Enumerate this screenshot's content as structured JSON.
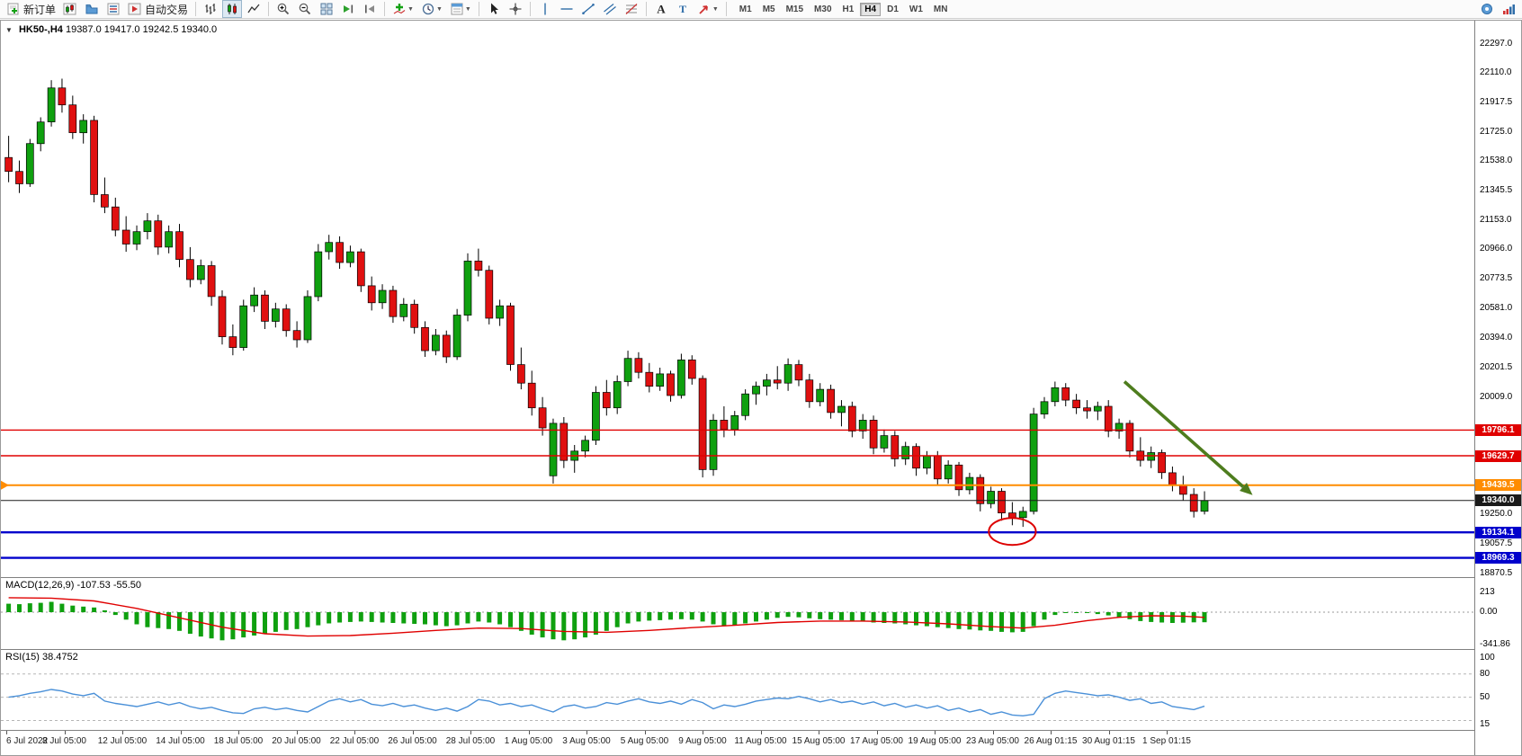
{
  "toolbar": {
    "new_order_label": "新订单",
    "auto_trading_label": "自动交易",
    "timeframes": [
      "M1",
      "M5",
      "M15",
      "M30",
      "H1",
      "H4",
      "D1",
      "W1",
      "MN"
    ],
    "active_timeframe": "H4"
  },
  "chart_header": {
    "expander": "▼",
    "title": "HK50-,H4",
    "ohlc": "19387.0 19417.0 19242.5 19340.0"
  },
  "chart_data": {
    "type": "candlestick",
    "symbol": "HK50-",
    "timeframe": "H4",
    "ohlc_display": {
      "open": 19387.0,
      "high": 19417.0,
      "low": 19242.5,
      "close": 19340.0
    },
    "colors": {
      "up": "#0fa00f",
      "down": "#e01010",
      "wick": "#000000",
      "macd_hist": "#0fa00f",
      "macd_signal": "#e00000",
      "rsi_line": "#4a90d8"
    },
    "price_axis": {
      "plain_ticks": [
        22297.0,
        22110.0,
        21917.5,
        21725.0,
        21538.0,
        21345.5,
        21153.0,
        20966.0,
        20773.5,
        20581.0,
        20394.0,
        20201.5,
        20009.0,
        19250.0,
        19057.5,
        18870.5
      ],
      "top_price": 22350,
      "bottom_price": 18845
    },
    "hlines": [
      {
        "price": 19796.1,
        "label": "19796.1",
        "color": "#e00000",
        "width": 1.4,
        "marker_left": false
      },
      {
        "price": 19629.7,
        "label": "19629.7",
        "color": "#e00000",
        "width": 1.4,
        "marker_left": false
      },
      {
        "price": 19439.5,
        "label": "19439.5",
        "color": "#ff8c00",
        "width": 2,
        "marker_left": true
      },
      {
        "price": 19340.0,
        "label": "19340.0",
        "color": "#1a1a1a",
        "width": 1,
        "marker_left": false
      },
      {
        "price": 19134.1,
        "label": "19134.1",
        "color": "#0000cc",
        "width": 2.4,
        "marker_left": false
      },
      {
        "price": 18969.3,
        "label": "18969.3",
        "color": "#0000cc",
        "width": 2.4,
        "marker_left": false
      }
    ],
    "candles": [
      [
        21560,
        21700,
        21400,
        21470
      ],
      [
        21470,
        21540,
        21330,
        21390
      ],
      [
        21390,
        21680,
        21370,
        21650
      ],
      [
        21650,
        21820,
        21600,
        21790
      ],
      [
        21790,
        22060,
        21760,
        22010
      ],
      [
        22010,
        22070,
        21850,
        21900
      ],
      [
        21900,
        21960,
        21680,
        21720
      ],
      [
        21720,
        21840,
        21650,
        21800
      ],
      [
        21800,
        21830,
        21270,
        21320
      ],
      [
        21320,
        21430,
        21200,
        21240
      ],
      [
        21240,
        21300,
        21050,
        21090
      ],
      [
        21090,
        21180,
        20950,
        21000
      ],
      [
        21000,
        21120,
        20960,
        21080
      ],
      [
        21080,
        21200,
        21030,
        21150
      ],
      [
        21150,
        21190,
        20930,
        20980
      ],
      [
        20980,
        21120,
        20940,
        21080
      ],
      [
        21080,
        21130,
        20850,
        20900
      ],
      [
        20900,
        20980,
        20720,
        20770
      ],
      [
        20770,
        20900,
        20740,
        20860
      ],
      [
        20860,
        20890,
        20600,
        20660
      ],
      [
        20660,
        20700,
        20350,
        20400
      ],
      [
        20400,
        20480,
        20280,
        20330
      ],
      [
        20330,
        20640,
        20310,
        20600
      ],
      [
        20600,
        20720,
        20560,
        20670
      ],
      [
        20670,
        20700,
        20450,
        20500
      ],
      [
        20500,
        20620,
        20460,
        20580
      ],
      [
        20580,
        20610,
        20400,
        20440
      ],
      [
        20440,
        20500,
        20330,
        20380
      ],
      [
        20380,
        20700,
        20360,
        20660
      ],
      [
        20660,
        21000,
        20630,
        20950
      ],
      [
        20950,
        21060,
        20900,
        21010
      ],
      [
        21010,
        21050,
        20840,
        20880
      ],
      [
        20880,
        20990,
        20850,
        20950
      ],
      [
        20950,
        20970,
        20690,
        20730
      ],
      [
        20730,
        20790,
        20570,
        20620
      ],
      [
        20620,
        20740,
        20580,
        20700
      ],
      [
        20700,
        20730,
        20490,
        20530
      ],
      [
        20530,
        20650,
        20500,
        20610
      ],
      [
        20610,
        20640,
        20420,
        20460
      ],
      [
        20460,
        20500,
        20270,
        20310
      ],
      [
        20310,
        20450,
        20280,
        20410
      ],
      [
        20410,
        20440,
        20230,
        20270
      ],
      [
        20270,
        20580,
        20250,
        20540
      ],
      [
        20540,
        20940,
        20500,
        20890
      ],
      [
        20890,
        20970,
        20790,
        20830
      ],
      [
        20830,
        20860,
        20480,
        20520
      ],
      [
        20520,
        20640,
        20470,
        20600
      ],
      [
        20600,
        20620,
        20180,
        20220
      ],
      [
        20220,
        20330,
        20060,
        20100
      ],
      [
        20100,
        20180,
        19890,
        19940
      ],
      [
        19940,
        20010,
        19760,
        19810
      ],
      [
        19500,
        19870,
        19450,
        19840
      ],
      [
        19840,
        19880,
        19550,
        19600
      ],
      [
        19600,
        19700,
        19520,
        19660
      ],
      [
        19660,
        19760,
        19620,
        19730
      ],
      [
        19730,
        20080,
        19700,
        20040
      ],
      [
        20040,
        20120,
        19890,
        19940
      ],
      [
        19940,
        20150,
        19900,
        20110
      ],
      [
        20110,
        20310,
        20080,
        20260
      ],
      [
        20260,
        20300,
        20130,
        20170
      ],
      [
        20170,
        20230,
        20040,
        20080
      ],
      [
        20080,
        20200,
        20050,
        20160
      ],
      [
        20160,
        20180,
        19980,
        20020
      ],
      [
        20020,
        20290,
        20000,
        20250
      ],
      [
        20250,
        20280,
        20090,
        20130
      ],
      [
        20130,
        20150,
        19490,
        19540
      ],
      [
        19540,
        19900,
        19500,
        19860
      ],
      [
        19860,
        19950,
        19750,
        19800
      ],
      [
        19800,
        19920,
        19760,
        19890
      ],
      [
        19890,
        20060,
        19860,
        20030
      ],
      [
        20030,
        20110,
        19960,
        20080
      ],
      [
        20080,
        20160,
        20020,
        20120
      ],
      [
        20120,
        20210,
        20060,
        20100
      ],
      [
        20100,
        20260,
        20050,
        20220
      ],
      [
        20220,
        20250,
        20080,
        20120
      ],
      [
        20120,
        20160,
        19940,
        19980
      ],
      [
        19980,
        20100,
        19950,
        20060
      ],
      [
        20060,
        20090,
        19870,
        19910
      ],
      [
        19910,
        19990,
        19820,
        19950
      ],
      [
        19950,
        19980,
        19750,
        19790
      ],
      [
        19790,
        19900,
        19740,
        19860
      ],
      [
        19860,
        19890,
        19640,
        19680
      ],
      [
        19680,
        19800,
        19650,
        19760
      ],
      [
        19760,
        19790,
        19560,
        19610
      ],
      [
        19610,
        19720,
        19570,
        19690
      ],
      [
        19690,
        19710,
        19500,
        19550
      ],
      [
        19550,
        19660,
        19510,
        19630
      ],
      [
        19630,
        19660,
        19440,
        19480
      ],
      [
        19480,
        19600,
        19450,
        19570
      ],
      [
        19570,
        19590,
        19370,
        19410
      ],
      [
        19410,
        19520,
        19380,
        19490
      ],
      [
        19490,
        19510,
        19270,
        19320
      ],
      [
        19320,
        19430,
        19290,
        19400
      ],
      [
        19400,
        19420,
        19210,
        19260
      ],
      [
        19260,
        19330,
        19180,
        19230
      ],
      [
        19230,
        19300,
        19170,
        19270
      ],
      [
        19270,
        19940,
        19250,
        19900
      ],
      [
        19900,
        20010,
        19870,
        19980
      ],
      [
        19980,
        20110,
        19950,
        20070
      ],
      [
        20070,
        20100,
        19950,
        19990
      ],
      [
        19990,
        20030,
        19900,
        19940
      ],
      [
        19940,
        19990,
        19870,
        19920
      ],
      [
        19920,
        19980,
        19860,
        19950
      ],
      [
        19950,
        19990,
        19750,
        19790
      ],
      [
        19790,
        19870,
        19740,
        19840
      ],
      [
        19840,
        19860,
        19620,
        19660
      ],
      [
        19660,
        19750,
        19560,
        19600
      ],
      [
        19600,
        19690,
        19550,
        19650
      ],
      [
        19650,
        19670,
        19480,
        19520
      ],
      [
        19520,
        19560,
        19400,
        19440
      ],
      [
        19440,
        19500,
        19340,
        19380
      ],
      [
        19380,
        19420,
        19230,
        19270
      ],
      [
        19270,
        19400,
        19250,
        19340
      ]
    ],
    "time_labels": [
      "6 Jul 2022",
      "8 Jul 05:00",
      "12 Jul 05:00",
      "14 Jul 05:00",
      "18 Jul 05:00",
      "20 Jul 05:00",
      "22 Jul 05:00",
      "26 Jul 05:00",
      "28 Jul 05:00",
      "1 Aug 05:00",
      "3 Aug 05:00",
      "5 Aug 05:00",
      "9 Aug 05:00",
      "11 Aug 05:00",
      "15 Aug 05:00",
      "17 Aug 05:00",
      "19 Aug 05:00",
      "23 Aug 05:00",
      "26 Aug 01:15",
      "30 Aug 01:15",
      "1 Sep 01:15"
    ],
    "annotations": {
      "ellipse": {
        "center_index": 94,
        "center_price": 19140,
        "half_width_candles": 2.2,
        "half_height_points": 87,
        "color": "#dd0000"
      },
      "arrow": {
        "from_index": 104.5,
        "from_price": 20110,
        "to_index": 116.5,
        "to_price": 19375,
        "color": "#4e7d1e"
      }
    },
    "macd": {
      "name": "MACD(12,26,9)",
      "values_text": "-107.53 -55.50",
      "axis_ticks": [
        {
          "label": "213",
          "value": 213
        },
        {
          "label": "0.00",
          "value": 0
        },
        {
          "label": "-341.86",
          "value": -341.86
        }
      ],
      "histogram": [
        90,
        85,
        95,
        100,
        110,
        90,
        70,
        60,
        50,
        20,
        -30,
        -80,
        -130,
        -160,
        -170,
        -180,
        -200,
        -230,
        -260,
        -280,
        -300,
        -290,
        -270,
        -250,
        -230,
        -210,
        -190,
        -180,
        -160,
        -140,
        -120,
        -110,
        -105,
        -100,
        -105,
        -110,
        -115,
        -120,
        -125,
        -130,
        -140,
        -150,
        -140,
        -120,
        -100,
        -110,
        -130,
        -160,
        -200,
        -240,
        -270,
        -290,
        -300,
        -290,
        -270,
        -240,
        -200,
        -160,
        -120,
        -100,
        -90,
        -85,
        -80,
        -75,
        -80,
        -100,
        -130,
        -150,
        -140,
        -120,
        -100,
        -80,
        -60,
        -50,
        -55,
        -65,
        -75,
        -80,
        -85,
        -95,
        -100,
        -110,
        -115,
        -120,
        -130,
        -140,
        -150,
        -160,
        -170,
        -180,
        -185,
        -195,
        -200,
        -210,
        -215,
        -210,
        -150,
        -80,
        -30,
        -10,
        -5,
        -10,
        -20,
        -35,
        -55,
        -75,
        -95,
        -105,
        -110,
        -115,
        -112,
        -108,
        -107.53
      ],
      "signal_keypoints": [
        [
          0,
          155
        ],
        [
          4,
          150
        ],
        [
          8,
          120
        ],
        [
          12,
          40
        ],
        [
          16,
          -60
        ],
        [
          20,
          -160
        ],
        [
          24,
          -230
        ],
        [
          28,
          -255
        ],
        [
          32,
          -250
        ],
        [
          36,
          -225
        ],
        [
          40,
          -195
        ],
        [
          44,
          -170
        ],
        [
          48,
          -175
        ],
        [
          52,
          -205
        ],
        [
          56,
          -215
        ],
        [
          60,
          -195
        ],
        [
          64,
          -165
        ],
        [
          68,
          -140
        ],
        [
          72,
          -110
        ],
        [
          76,
          -95
        ],
        [
          80,
          -95
        ],
        [
          84,
          -105
        ],
        [
          88,
          -125
        ],
        [
          92,
          -155
        ],
        [
          95,
          -170
        ],
        [
          98,
          -140
        ],
        [
          101,
          -90
        ],
        [
          104,
          -55
        ],
        [
          107,
          -38
        ],
        [
          110,
          -42
        ],
        [
          112,
          -55.5
        ]
      ]
    },
    "rsi": {
      "name": "RSI(15)",
      "value_text": "38.4752",
      "axis_ticks": [
        {
          "label": "100",
          "value": 100
        },
        {
          "label": "80",
          "value": 80
        },
        {
          "label": "50",
          "value": 50
        },
        {
          "label": "15",
          "value": 15
        }
      ],
      "levels_dashed": [
        80,
        50,
        20
      ],
      "values": [
        50,
        52,
        55,
        57,
        60,
        58,
        54,
        52,
        55,
        45,
        42,
        40,
        38,
        41,
        44,
        40,
        43,
        38,
        35,
        37,
        33,
        30,
        29,
        35,
        37,
        34,
        36,
        33,
        31,
        38,
        45,
        48,
        44,
        47,
        41,
        39,
        42,
        38,
        40,
        36,
        33,
        36,
        32,
        38,
        47,
        45,
        40,
        42,
        38,
        40,
        35,
        31,
        38,
        40,
        36,
        38,
        43,
        41,
        45,
        48,
        44,
        42,
        45,
        41,
        47,
        43,
        35,
        40,
        38,
        41,
        45,
        47,
        49,
        48,
        51,
        48,
        44,
        47,
        43,
        45,
        41,
        44,
        39,
        42,
        37,
        40,
        36,
        39,
        33,
        36,
        31,
        34,
        28,
        31,
        27,
        26,
        28,
        48,
        55,
        58,
        56,
        54,
        52,
        53,
        50,
        46,
        48,
        42,
        44,
        38,
        36,
        34,
        38.47
      ]
    }
  }
}
